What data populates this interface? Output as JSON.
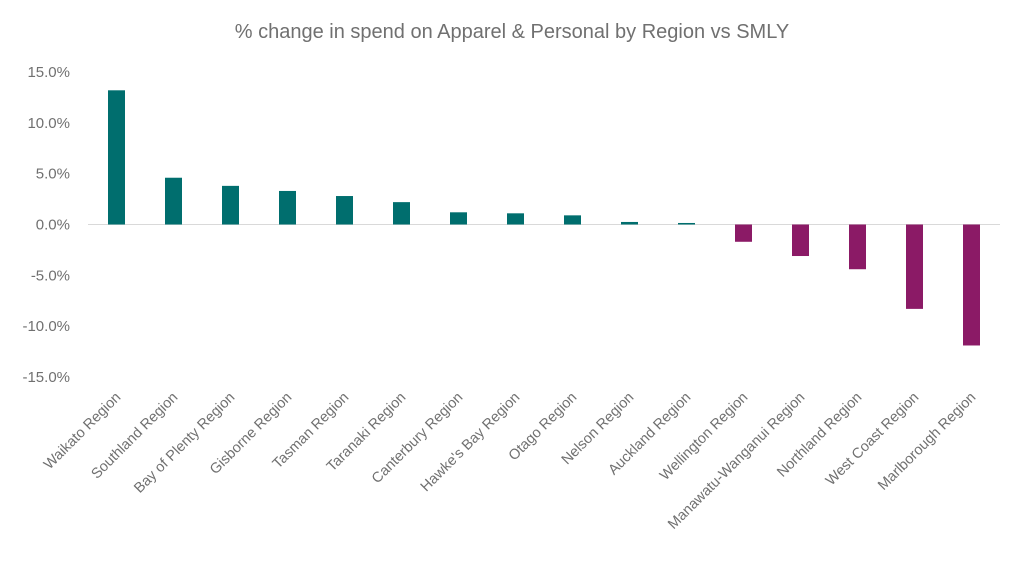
{
  "chart_data": {
    "type": "bar",
    "title": "% change in spend on Apparel & Personal by Region vs SMLY",
    "xlabel": "",
    "ylabel": "",
    "categories": [
      "Waikato Region",
      "Southland Region",
      "Bay of Plenty Region",
      "Gisborne Region",
      "Tasman Region",
      "Taranaki Region",
      "Canterbury Region",
      "Hawke's Bay Region",
      "Otago Region",
      "Nelson Region",
      "Auckland Region",
      "Wellington Region",
      "Manawatu-Wanganui Region",
      "Northland Region",
      "West Coast Region",
      "Marlborough Region"
    ],
    "values": [
      13.2,
      4.6,
      3.8,
      3.3,
      2.8,
      2.2,
      1.2,
      1.1,
      0.9,
      0.25,
      0.15,
      -1.7,
      -3.1,
      -4.4,
      -8.3,
      -11.9
    ],
    "ylim": [
      -15,
      15
    ],
    "yticks": [
      15,
      10,
      5,
      0,
      -5,
      -10,
      -15
    ],
    "ytick_labels": [
      "15.0%",
      "10.0%",
      "5.0%",
      "0.0%",
      "-5.0%",
      "-10.0%",
      "-15.0%"
    ],
    "grid": false,
    "legend": "none",
    "colors": {
      "positive": "#006e6e",
      "negative": "#8b1a66",
      "text": "#707070",
      "axis": "#d9d9d9"
    }
  }
}
